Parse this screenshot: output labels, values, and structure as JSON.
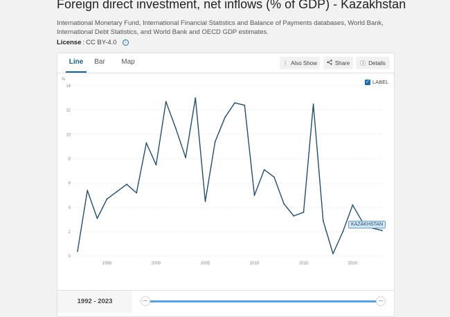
{
  "header": {
    "title": "Foreign direct investment, net inflows (% of GDP) - Kazakhstan",
    "source": "International Monetary Fund, International Financial Statistics and Balance of Payments databases, World Bank, International Debt Statistics, and World Bank and OECD GDP estimates.",
    "license_label": "License",
    "license_sep": ":",
    "license_value": "CC BY-4.0",
    "info_icon": "info-icon"
  },
  "tabs": [
    {
      "label": "Line",
      "active": true
    },
    {
      "label": "Bar",
      "active": false
    },
    {
      "label": "Map",
      "active": false
    }
  ],
  "toolbar": {
    "also_show": {
      "label": "Also Show",
      "icon": "vertical-dots-icon"
    },
    "share": {
      "label": "Share",
      "icon": "share-icon"
    },
    "details": {
      "label": "Details",
      "icon": "info-icon"
    }
  },
  "label_toggle": {
    "label": "LABEL",
    "checked": true
  },
  "series_callout": "KAZAKHSTAN",
  "range_label": "1992 - 2023",
  "colors": {
    "line": "#1f4e6e",
    "accent": "#1a5f8e",
    "slider": "#5b9fd6"
  },
  "chart_data": {
    "type": "line",
    "ylabel": "%",
    "ylim": [
      0,
      14
    ],
    "yticks": [
      0,
      2,
      4,
      6,
      8,
      10,
      12,
      14
    ],
    "xlim": [
      1992,
      2023
    ],
    "xticks": [
      1995,
      2000,
      2005,
      2010,
      2015,
      2020
    ],
    "grid": true,
    "series": [
      {
        "name": "KAZAKHSTAN",
        "x": [
          1992,
          1993,
          1994,
          1995,
          1996,
          1997,
          1998,
          1999,
          2000,
          2001,
          2002,
          2003,
          2004,
          2005,
          2006,
          2007,
          2008,
          2009,
          2010,
          2011,
          2012,
          2013,
          2014,
          2015,
          2016,
          2017,
          2018,
          2019,
          2020,
          2021,
          2022,
          2023
        ],
        "values": [
          0.4,
          5.4,
          3.1,
          4.7,
          5.3,
          5.9,
          5.2,
          9.3,
          7.5,
          12.7,
          10.5,
          8.1,
          13.0,
          4.5,
          9.4,
          11.4,
          12.6,
          12.4,
          5.0,
          7.1,
          6.5,
          4.3,
          3.3,
          3.6,
          12.5,
          2.9,
          0.2,
          2.0,
          4.2,
          2.8,
          2.3,
          2.1
        ]
      }
    ]
  }
}
